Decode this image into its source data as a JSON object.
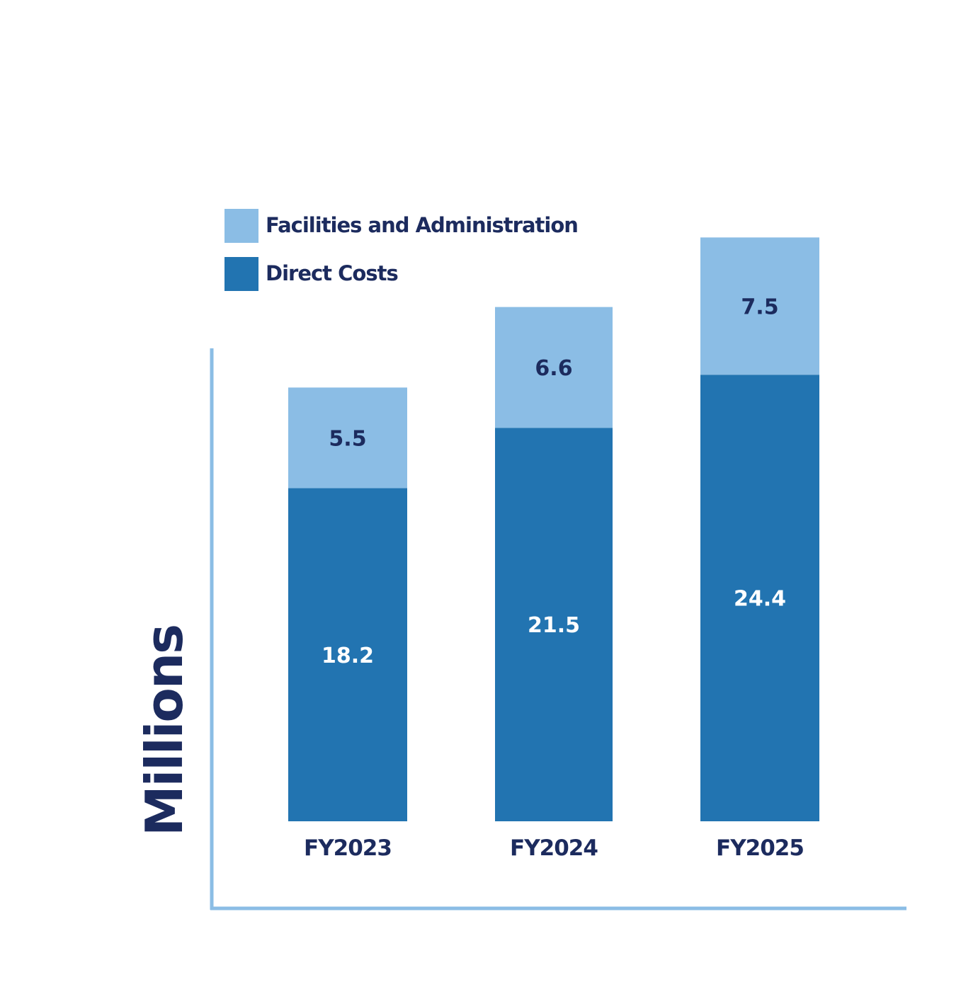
{
  "colors": {
    "facilities": "#8bbde5",
    "direct": "#2274b1",
    "axis": "#8bbde5",
    "dark_text": "#1c2b5e",
    "light_text": "#ffffff"
  },
  "legend": [
    {
      "name": "Facilities and Administration",
      "color": "#8bbde5"
    },
    {
      "name": "Direct Costs",
      "color": "#2274b1"
    }
  ],
  "chart_data": {
    "type": "bar",
    "stacked": true,
    "categories": [
      "FY2023",
      "FY2024",
      "FY2025"
    ],
    "series": [
      {
        "name": "Direct Costs",
        "values": [
          18.2,
          21.5,
          24.4
        ],
        "labels": [
          "18.2",
          "21.5",
          "24.4"
        ]
      },
      {
        "name": "Facilities and Administration",
        "values": [
          5.5,
          6.6,
          7.5
        ],
        "labels": [
          "5.5",
          "6.6",
          "7.5"
        ]
      }
    ],
    "title": "",
    "xlabel": "",
    "ylabel": "Millions",
    "ylim": [
      0,
      32.5
    ],
    "grid": false,
    "legend_position": "top-left"
  }
}
